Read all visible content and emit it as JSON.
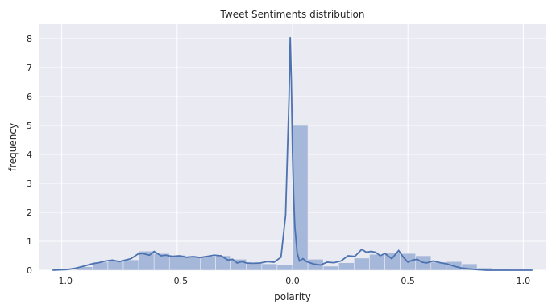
{
  "chart_data": {
    "type": "bar",
    "title": "Tweet Sentiments distribution",
    "xlabel": "polarity",
    "ylabel": "frequency",
    "xlim": [
      -1.1,
      1.1
    ],
    "ylim": [
      0,
      8.5
    ],
    "x_ticks": [
      -1.0,
      -0.5,
      0.0,
      0.5,
      1.0
    ],
    "x_tick_labels": [
      "−1.0",
      "−0.5",
      "0.0",
      "0.5",
      "1.0"
    ],
    "y_ticks": [
      0,
      1,
      2,
      3,
      4,
      5,
      6,
      7,
      8
    ],
    "y_tick_labels": [
      "0",
      "1",
      "2",
      "3",
      "4",
      "5",
      "6",
      "7",
      "8"
    ],
    "grid": true,
    "bin_edges": [
      -1.0,
      -0.9333,
      -0.8667,
      -0.8,
      -0.7333,
      -0.6667,
      -0.6,
      -0.5333,
      -0.4667,
      -0.4,
      -0.3333,
      -0.2667,
      -0.2,
      -0.1333,
      -0.0667,
      0.0,
      0.0667,
      0.1333,
      0.2,
      0.2667,
      0.3333,
      0.4,
      0.4667,
      0.5333,
      0.6,
      0.6667,
      0.7333,
      0.8,
      0.8667,
      0.9333,
      1.0
    ],
    "histogram": [
      0.02,
      0.12,
      0.28,
      0.32,
      0.36,
      0.66,
      0.58,
      0.52,
      0.48,
      0.46,
      0.5,
      0.38,
      0.24,
      0.22,
      0.18,
      5.0,
      0.38,
      0.14,
      0.26,
      0.42,
      0.55,
      0.62,
      0.58,
      0.5,
      0.28,
      0.3,
      0.22,
      0.08,
      0.03,
      0.01
    ],
    "kde": {
      "x": [
        -1.04,
        -0.98,
        -0.94,
        -0.9,
        -0.87,
        -0.84,
        -0.81,
        -0.78,
        -0.75,
        -0.72,
        -0.7,
        -0.67,
        -0.65,
        -0.62,
        -0.6,
        -0.57,
        -0.55,
        -0.52,
        -0.49,
        -0.46,
        -0.43,
        -0.4,
        -0.37,
        -0.34,
        -0.31,
        -0.28,
        -0.26,
        -0.24,
        -0.22,
        -0.2,
        -0.17,
        -0.14,
        -0.11,
        -0.08,
        -0.05,
        -0.03,
        -0.015,
        -0.01,
        -0.005,
        0.0,
        0.005,
        0.01,
        0.02,
        0.03,
        0.045,
        0.06,
        0.09,
        0.12,
        0.15,
        0.18,
        0.21,
        0.24,
        0.27,
        0.3,
        0.32,
        0.34,
        0.36,
        0.38,
        0.4,
        0.43,
        0.46,
        0.48,
        0.5,
        0.52,
        0.54,
        0.56,
        0.58,
        0.61,
        0.64,
        0.67,
        0.7,
        0.73,
        0.76,
        0.8,
        0.84,
        0.88,
        0.92,
        0.96,
        1.0,
        1.04
      ],
      "y": [
        0.0,
        0.02,
        0.07,
        0.15,
        0.22,
        0.26,
        0.32,
        0.35,
        0.3,
        0.36,
        0.4,
        0.56,
        0.58,
        0.52,
        0.65,
        0.5,
        0.52,
        0.48,
        0.5,
        0.45,
        0.47,
        0.44,
        0.48,
        0.52,
        0.5,
        0.35,
        0.38,
        0.25,
        0.3,
        0.25,
        0.24,
        0.25,
        0.3,
        0.28,
        0.45,
        1.9,
        6.0,
        8.05,
        6.5,
        4.0,
        2.5,
        1.5,
        0.6,
        0.32,
        0.4,
        0.3,
        0.22,
        0.18,
        0.28,
        0.26,
        0.32,
        0.5,
        0.48,
        0.72,
        0.62,
        0.65,
        0.62,
        0.5,
        0.58,
        0.4,
        0.68,
        0.45,
        0.28,
        0.35,
        0.38,
        0.28,
        0.25,
        0.32,
        0.26,
        0.22,
        0.14,
        0.08,
        0.05,
        0.02,
        0.0,
        0.0,
        0.0,
        0.0,
        0.0,
        0.0
      ]
    }
  },
  "colors": {
    "plot_background": "#EAEAF2",
    "grid": "#FFFFFF",
    "bar_fill": "#A6B8DA",
    "kde_line": "#4C72B0",
    "text": "#262626"
  }
}
